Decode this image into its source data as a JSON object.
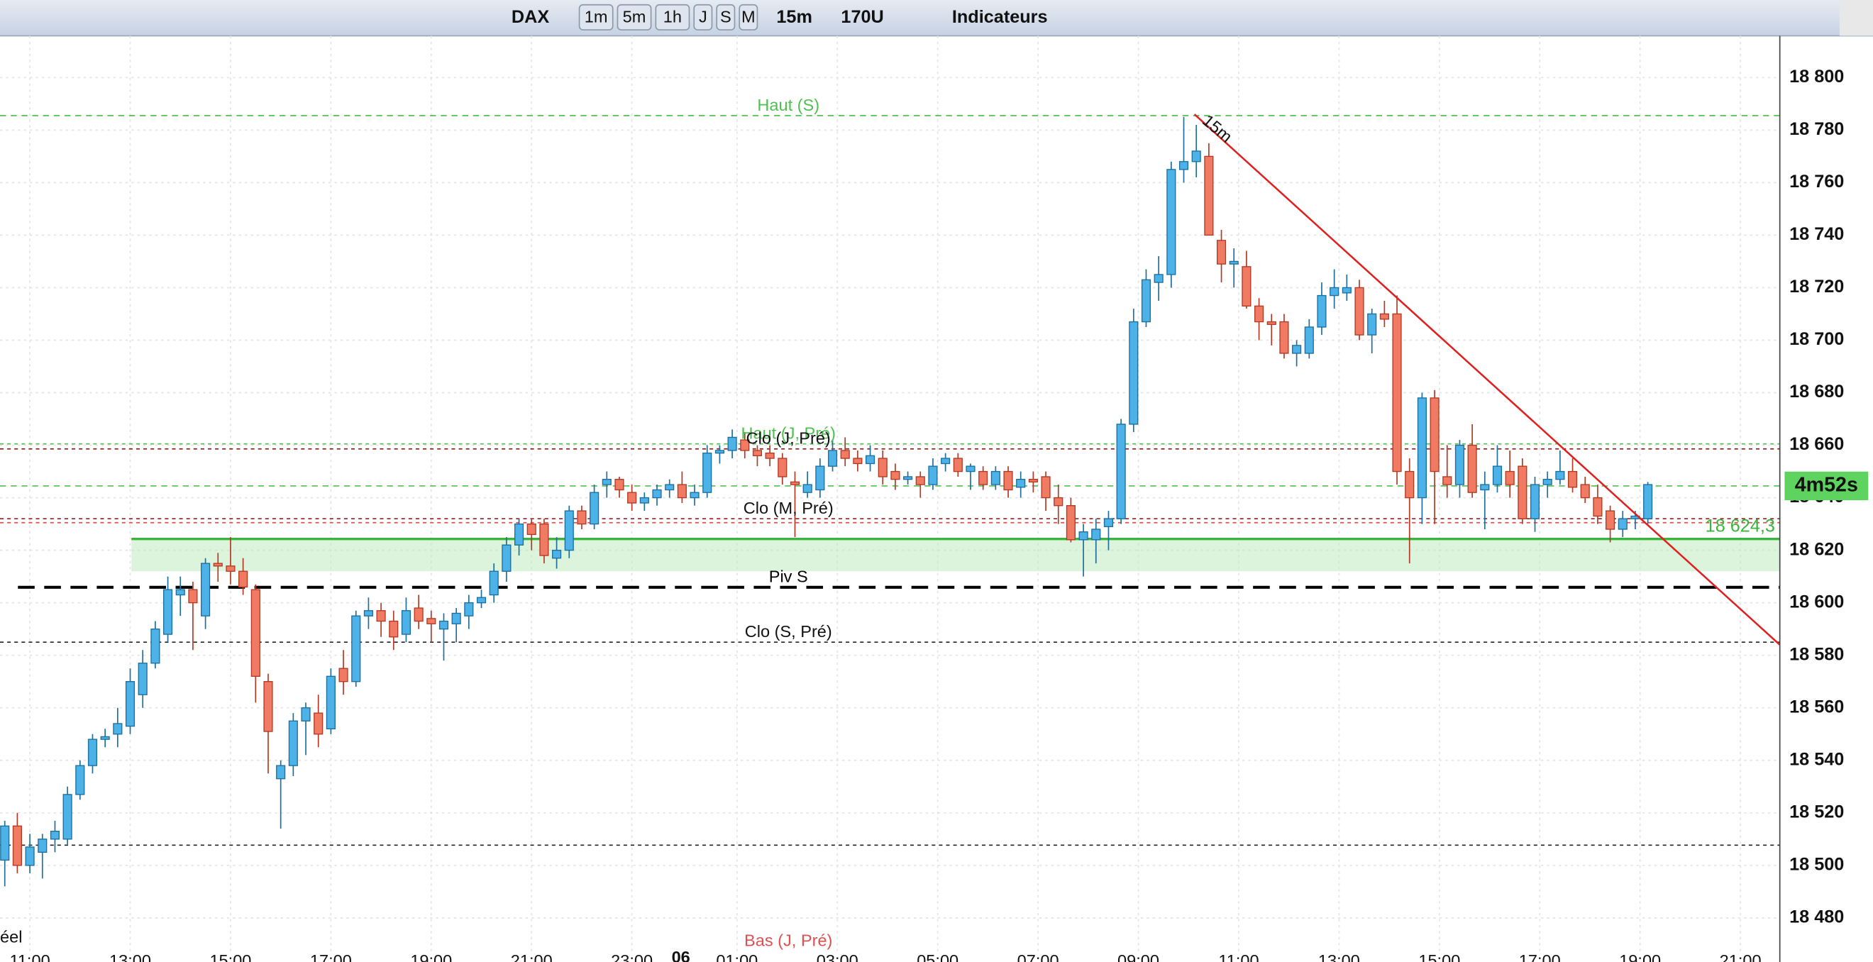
{
  "toolbar": {
    "symbol": "DAX",
    "periods": [
      "1m",
      "5m",
      "1h",
      "J",
      "S",
      "M"
    ],
    "interval": "15m",
    "units": "170U",
    "indicators": "Indicateurs"
  },
  "chart_data": {
    "type": "candlestick",
    "up_color": "#4db2e8",
    "down_color": "#f07a62",
    "ylim": [
      18467.3,
      18815.9
    ],
    "yticks": [
      {
        "value": 18480,
        "label": "18 480"
      },
      {
        "value": 18500,
        "label": "18 500"
      },
      {
        "value": 18520,
        "label": "18 520"
      },
      {
        "value": 18540,
        "label": "18 540"
      },
      {
        "value": 18560,
        "label": "18 560"
      },
      {
        "value": 18580,
        "label": "18 580"
      },
      {
        "value": 18600,
        "label": "18 600"
      },
      {
        "value": 18620,
        "label": "18 620"
      },
      {
        "value": 18640,
        "label": "18 640"
      },
      {
        "value": 18660,
        "label": "18 660"
      },
      {
        "value": 18680,
        "label": "18 680"
      },
      {
        "value": 18700,
        "label": "18 700"
      },
      {
        "value": 18720,
        "label": "18 720"
      },
      {
        "value": 18740,
        "label": "18 740"
      },
      {
        "value": 18760,
        "label": "18 760"
      },
      {
        "value": 18780,
        "label": "18 780"
      },
      {
        "value": 18800,
        "label": "18 800"
      }
    ],
    "xticks": [
      "11:00",
      "13:00",
      "15:00",
      "17:00",
      "19:00",
      "21:00",
      "23:00",
      "01:00",
      "03:00",
      "05:00",
      "07:00",
      "09:00",
      "11:00",
      "13:00",
      "15:00",
      "17:00",
      "19:00",
      "21:00"
    ],
    "date_label": "06",
    "candles": [
      [
        18502,
        18517,
        18492,
        18515
      ],
      [
        18515,
        18520,
        18497,
        18500
      ],
      [
        18500,
        18512,
        18497,
        18507
      ],
      [
        18505,
        18512,
        18495,
        18510
      ],
      [
        18510,
        18517,
        18505,
        18513
      ],
      [
        18510,
        18530,
        18508,
        18527
      ],
      [
        18527,
        18540,
        18525,
        18538
      ],
      [
        18538,
        18550,
        18535,
        18548
      ],
      [
        18548,
        18552,
        18545,
        18549
      ],
      [
        18550,
        18560,
        18545,
        18554
      ],
      [
        18553,
        18575,
        18550,
        18570
      ],
      [
        18565,
        18582,
        18560,
        18577
      ],
      [
        18577,
        18593,
        18575,
        18590
      ],
      [
        18588,
        18610,
        18585,
        18605
      ],
      [
        18603,
        18610,
        18595,
        18605
      ],
      [
        18605,
        18608,
        18582,
        18600
      ],
      [
        18595,
        18617,
        18590,
        18615
      ],
      [
        18615,
        18619,
        18608,
        18614
      ],
      [
        18614,
        18625,
        18607,
        18612
      ],
      [
        18612,
        18617,
        18603,
        18606
      ],
      [
        18605,
        18607,
        18562,
        18572
      ],
      [
        18570,
        18573,
        18535,
        18551
      ],
      [
        18533,
        18540,
        18514,
        18538
      ],
      [
        18538,
        18558,
        18534,
        18555
      ],
      [
        18555,
        18562,
        18542,
        18560
      ],
      [
        18558,
        18565,
        18545,
        18550
      ],
      [
        18552,
        18575,
        18550,
        18572
      ],
      [
        18575,
        18582,
        18565,
        18570
      ],
      [
        18570,
        18597,
        18568,
        18595
      ],
      [
        18595,
        18602,
        18590,
        18597
      ],
      [
        18597,
        18600,
        18587,
        18593
      ],
      [
        18593,
        18597,
        18582,
        18587
      ],
      [
        18588,
        18602,
        18585,
        18597
      ],
      [
        18598,
        18603,
        18590,
        18593
      ],
      [
        18594,
        18597,
        18585,
        18592
      ],
      [
        18590,
        18596,
        18578,
        18593
      ],
      [
        18592,
        18598,
        18585,
        18596
      ],
      [
        18595,
        18603,
        18590,
        18600
      ],
      [
        18600,
        18605,
        18598,
        18602
      ],
      [
        18603,
        18615,
        18600,
        18612
      ],
      [
        18612,
        18625,
        18608,
        18622
      ],
      [
        18622,
        18632,
        18618,
        18630
      ],
      [
        18630,
        18632,
        18620,
        18626
      ],
      [
        18630,
        18632,
        18615,
        18618
      ],
      [
        18617,
        18625,
        18613,
        18620
      ],
      [
        18620,
        18637,
        18617,
        18635
      ],
      [
        18635,
        18637,
        18628,
        18630
      ],
      [
        18630,
        18645,
        18628,
        18642
      ],
      [
        18645,
        18650,
        18640,
        18647
      ],
      [
        18647,
        18648,
        18640,
        18643
      ],
      [
        18642,
        18645,
        18635,
        18638
      ],
      [
        18638,
        18642,
        18635,
        18640
      ],
      [
        18640,
        18645,
        18637,
        18643
      ],
      [
        18643,
        18647,
        18640,
        18645
      ],
      [
        18645,
        18650,
        18638,
        18640
      ],
      [
        18640,
        18645,
        18637,
        18642
      ],
      [
        18642,
        18660,
        18640,
        18657
      ],
      [
        18657,
        18660,
        18653,
        18658
      ],
      [
        18658,
        18666,
        18655,
        18663
      ],
      [
        18662,
        18665,
        18655,
        18658
      ],
      [
        18658,
        18660,
        18652,
        18656
      ],
      [
        18657,
        18660,
        18652,
        18655
      ],
      [
        18655,
        18657,
        18645,
        18648
      ],
      [
        18646,
        18650,
        18625,
        18645
      ],
      [
        18642,
        18650,
        18640,
        18645
      ],
      [
        18643,
        18655,
        18640,
        18652
      ],
      [
        18652,
        18662,
        18650,
        18658
      ],
      [
        18658,
        18663,
        18652,
        18655
      ],
      [
        18655,
        18658,
        18650,
        18653
      ],
      [
        18653,
        18660,
        18650,
        18656
      ],
      [
        18655,
        18658,
        18645,
        18648
      ],
      [
        18650,
        18653,
        18643,
        18647
      ],
      [
        18647,
        18650,
        18645,
        18648
      ],
      [
        18648,
        18650,
        18640,
        18645
      ],
      [
        18645,
        18655,
        18643,
        18652
      ],
      [
        18653,
        18657,
        18650,
        18655
      ],
      [
        18655,
        18657,
        18648,
        18650
      ],
      [
        18650,
        18653,
        18643,
        18652
      ],
      [
        18650,
        18652,
        18643,
        18645
      ],
      [
        18645,
        18652,
        18643,
        18650
      ],
      [
        18650,
        18652,
        18640,
        18643
      ],
      [
        18644,
        18650,
        18640,
        18647
      ],
      [
        18647,
        18650,
        18642,
        18646
      ],
      [
        18648,
        18650,
        18635,
        18640
      ],
      [
        18640,
        18645,
        18630,
        18637
      ],
      [
        18637,
        18640,
        18623,
        18624
      ],
      [
        18624,
        18630,
        18610,
        18627
      ],
      [
        18624,
        18632,
        18615,
        18628
      ],
      [
        18629,
        18635,
        18620,
        18632
      ],
      [
        18632,
        18670,
        18630,
        18668
      ],
      [
        18668,
        18712,
        18665,
        18707
      ],
      [
        18707,
        18727,
        18705,
        18723
      ],
      [
        18722,
        18732,
        18715,
        18725
      ],
      [
        18725,
        18768,
        18720,
        18765
      ],
      [
        18765,
        18785,
        18760,
        18768
      ],
      [
        18768,
        18782,
        18762,
        18772
      ],
      [
        18770,
        18775,
        18740,
        18740
      ],
      [
        18738,
        18742,
        18722,
        18729
      ],
      [
        18729,
        18735,
        18720,
        18730
      ],
      [
        18728,
        18734,
        18712,
        18713
      ],
      [
        18713,
        18716,
        18700,
        18707
      ],
      [
        18707,
        18710,
        18698,
        18706
      ],
      [
        18707,
        18710,
        18693,
        18695
      ],
      [
        18695,
        18700,
        18690,
        18698
      ],
      [
        18695,
        18708,
        18693,
        18705
      ],
      [
        18705,
        18722,
        18702,
        18717
      ],
      [
        18717,
        18727,
        18712,
        18720
      ],
      [
        18718,
        18725,
        18715,
        18720
      ],
      [
        18720,
        18723,
        18700,
        18702
      ],
      [
        18702,
        18712,
        18695,
        18710
      ],
      [
        18710,
        18715,
        18705,
        18708
      ],
      [
        18710,
        18717,
        18645,
        18650
      ],
      [
        18650,
        18655,
        18615,
        18640
      ],
      [
        18640,
        18680,
        18630,
        18678
      ],
      [
        18678,
        18681,
        18630,
        18650
      ],
      [
        18648,
        18660,
        18640,
        18645
      ],
      [
        18645,
        18662,
        18640,
        18660
      ],
      [
        18660,
        18668,
        18640,
        18642
      ],
      [
        18643,
        18650,
        18628,
        18645
      ],
      [
        18645,
        18660,
        18642,
        18652
      ],
      [
        18650,
        18658,
        18640,
        18645
      ],
      [
        18652,
        18655,
        18630,
        18632
      ],
      [
        18632,
        18648,
        18627,
        18645
      ],
      [
        18645,
        18650,
        18640,
        18647
      ],
      [
        18647,
        18658,
        18645,
        18650
      ],
      [
        18650,
        18655,
        18642,
        18644
      ],
      [
        18645,
        18648,
        18638,
        18640
      ],
      [
        18640,
        18645,
        18630,
        18633
      ],
      [
        18635,
        18637,
        18623,
        18628
      ],
      [
        18628,
        18635,
        18625,
        18632
      ],
      [
        18632,
        18635,
        18628,
        18633
      ],
      [
        18632,
        18646,
        18630,
        18645
      ]
    ],
    "levels": [
      {
        "name": "Haut (S)",
        "value": 18785.5,
        "color": "#4fc04f",
        "style": "dash"
      },
      {
        "name": "Haut (J, Pré)",
        "value": 18660.5,
        "color": "#4fc04f",
        "style": "dot"
      },
      {
        "name": "Clo (J, Pré)",
        "value": 18658.6,
        "color": "#8a2020",
        "style": "dot"
      },
      {
        "value": 18644.5,
        "color": "#4fc04f",
        "style": "dash"
      },
      {
        "name": "Clo (M, Pré)",
        "value": 18632,
        "color": "#8a2020",
        "style": "dot"
      },
      {
        "value": 18630.5,
        "color": "#e05050",
        "style": "dot"
      },
      {
        "label": "18 624,3",
        "value": 18624.3,
        "color": "#3cb33c",
        "style": "solid"
      },
      {
        "name": "Piv S",
        "value": 18605.9,
        "color": "#000000",
        "style": "bigdash"
      },
      {
        "name": "Clo (S, Pré)",
        "value": 18585,
        "color": "#222222",
        "style": "dot"
      },
      {
        "value": 18507.7,
        "color": "#222222",
        "style": "dot"
      },
      {
        "name": "Bas (J, Pré)",
        "value": 18462,
        "color": "#e05050",
        "style": "dot"
      }
    ],
    "zone": [
      18612,
      18624.3
    ],
    "trendline": [
      18786,
      18584
    ],
    "trend_label": "15m",
    "timer": "4m52s",
    "corner_text": "éel"
  }
}
